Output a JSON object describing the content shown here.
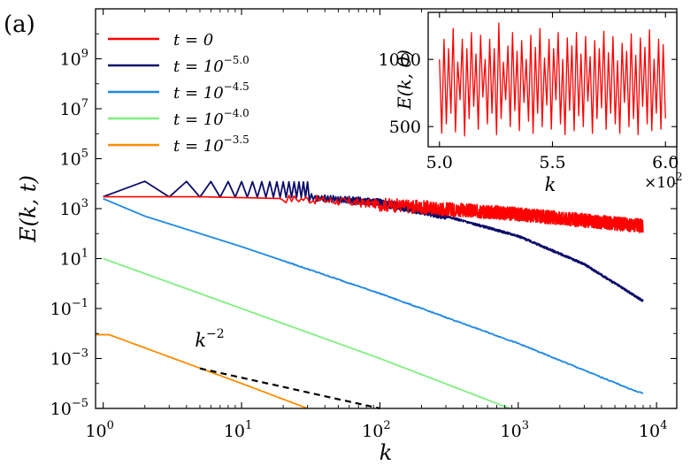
{
  "panel_label": "(a)",
  "chart_data": [
    {
      "type": "line",
      "xlabel": "k",
      "ylabel": "E(k, t)",
      "xscale": "log",
      "yscale": "log",
      "xlim": [
        0.88,
        14000
      ],
      "ylim": [
        1e-05,
        100000000000
      ],
      "x_ticks": [
        {
          "value": 1,
          "base": "10",
          "exp": "0"
        },
        {
          "value": 10,
          "base": "10",
          "exp": "1"
        },
        {
          "value": 100,
          "base": "10",
          "exp": "2"
        },
        {
          "value": 1000,
          "base": "10",
          "exp": "3"
        },
        {
          "value": 10000,
          "base": "10",
          "exp": "4"
        }
      ],
      "y_ticks": [
        {
          "value": 1e-05,
          "base": "10",
          "exp": "−5"
        },
        {
          "value": 0.001,
          "base": "10",
          "exp": "−3"
        },
        {
          "value": 0.1,
          "base": "10",
          "exp": "−1"
        },
        {
          "value": 10,
          "base": "10",
          "exp": "1"
        },
        {
          "value": 1000,
          "base": "10",
          "exp": "3"
        },
        {
          "value": 100000,
          "base": "10",
          "exp": "5"
        },
        {
          "value": 10000000,
          "base": "10",
          "exp": "7"
        },
        {
          "value": 1000000000,
          "base": "10",
          "exp": "9"
        }
      ],
      "legend_position": "top-left",
      "series": [
        {
          "name": "t = 0",
          "label_main": "t = 0",
          "label_exp": "",
          "color": "#ff0000",
          "style": "noisy",
          "points": [
            [
              1,
              3000
            ],
            [
              5,
              3000
            ],
            [
              30,
              2400
            ],
            [
              100,
              1500
            ],
            [
              1000,
              600
            ],
            [
              8000,
              200
            ]
          ],
          "noise_amp": 0.3
        },
        {
          "name": "t = 10^-5.0",
          "label_main": "t = 10",
          "label_exp": "−5.0",
          "color": "#0c0c6b",
          "style": "zigzag",
          "points": [
            [
              1,
              3000
            ],
            [
              30,
              2800
            ],
            [
              100,
              1700
            ],
            [
              300,
              500
            ],
            [
              1000,
              80
            ],
            [
              3000,
              6
            ],
            [
              8000,
              0.2
            ]
          ],
          "noise_amp": 0.1
        },
        {
          "name": "t = 10^-4.5",
          "label_main": "t = 10",
          "label_exp": "−4.5",
          "color": "#1e88e5",
          "style": "smooth",
          "points": [
            [
              1,
              2500
            ],
            [
              2,
              500
            ],
            [
              10,
              30
            ],
            [
              100,
              0.4
            ],
            [
              1000,
              0.004
            ],
            [
              7000,
              5e-05
            ],
            [
              8000,
              4e-05
            ]
          ],
          "noise_amp": 0.04
        },
        {
          "name": "t = 10^-4.0",
          "label_main": "t = 10",
          "label_exp": "−4.0",
          "color": "#7ff07f",
          "style": "smooth",
          "points": [
            [
              1,
              10
            ],
            [
              10,
              0.1
            ],
            [
              100,
              0.001
            ],
            [
              870,
              1e-05
            ]
          ],
          "noise_amp": 0
        },
        {
          "name": "t = 10^-3.5",
          "label_main": "t = 10",
          "label_exp": "−3.5",
          "color": "#ff8c00",
          "style": "smooth",
          "points": [
            [
              0.88,
              0.009
            ],
            [
              1.1,
              0.009
            ],
            [
              10,
              0.0001
            ],
            [
              30,
              1e-05
            ]
          ],
          "noise_amp": 0
        }
      ],
      "annotations": [
        {
          "text_base": "k",
          "text_exp": "−2",
          "kind": "reference-slope",
          "line_from": [
            5,
            0.0004
          ],
          "line_to": [
            100,
            1e-05
          ],
          "label_at": [
            4.6,
            0.003
          ]
        }
      ]
    },
    {
      "type": "line",
      "role": "inset",
      "position": "top-right",
      "xlabel": "k",
      "ylabel": "E(k, 0)",
      "xlim": [
        4.95,
        6.05
      ],
      "ylim": [
        350,
        1350
      ],
      "x_ticks": [
        "5.0",
        "5.5",
        "6.0"
      ],
      "y_ticks": [
        "500",
        "1000"
      ],
      "x_multiplier_base": "×10",
      "x_multiplier_exp": "2",
      "series": [
        {
          "name": "E(k, 0)",
          "color": "#ff0000",
          "values": [
            1000,
            450,
            1150,
            520,
            1080,
            600,
            1230,
            460,
            980,
            700,
            1150,
            430,
            1080,
            560,
            1200,
            650,
            1040,
            480,
            1180,
            720,
            1000,
            520,
            1150,
            600,
            1080,
            440,
            1270,
            560,
            980,
            700,
            1100,
            500,
            1200,
            620,
            1060,
            470,
            1140,
            680,
            1000,
            540,
            1180,
            450,
            1090,
            600,
            1230,
            500,
            1010,
            660,
            1150,
            480,
            1080,
            700,
            1200,
            520,
            1000,
            440,
            1160,
            620,
            1100,
            470,
            1200,
            580,
            1040,
            500,
            1170,
            690,
            1020,
            450,
            1140,
            560,
            1080,
            640,
            1210,
            480,
            1050,
            600,
            1170,
            520,
            990,
            450,
            1120,
            680,
            1060,
            500,
            1190,
            560,
            1030,
            440,
            1160,
            650,
            1090,
            520,
            1220,
            470,
            1000,
            600,
            1150,
            480,
            1110,
            560
          ]
        }
      ]
    }
  ]
}
